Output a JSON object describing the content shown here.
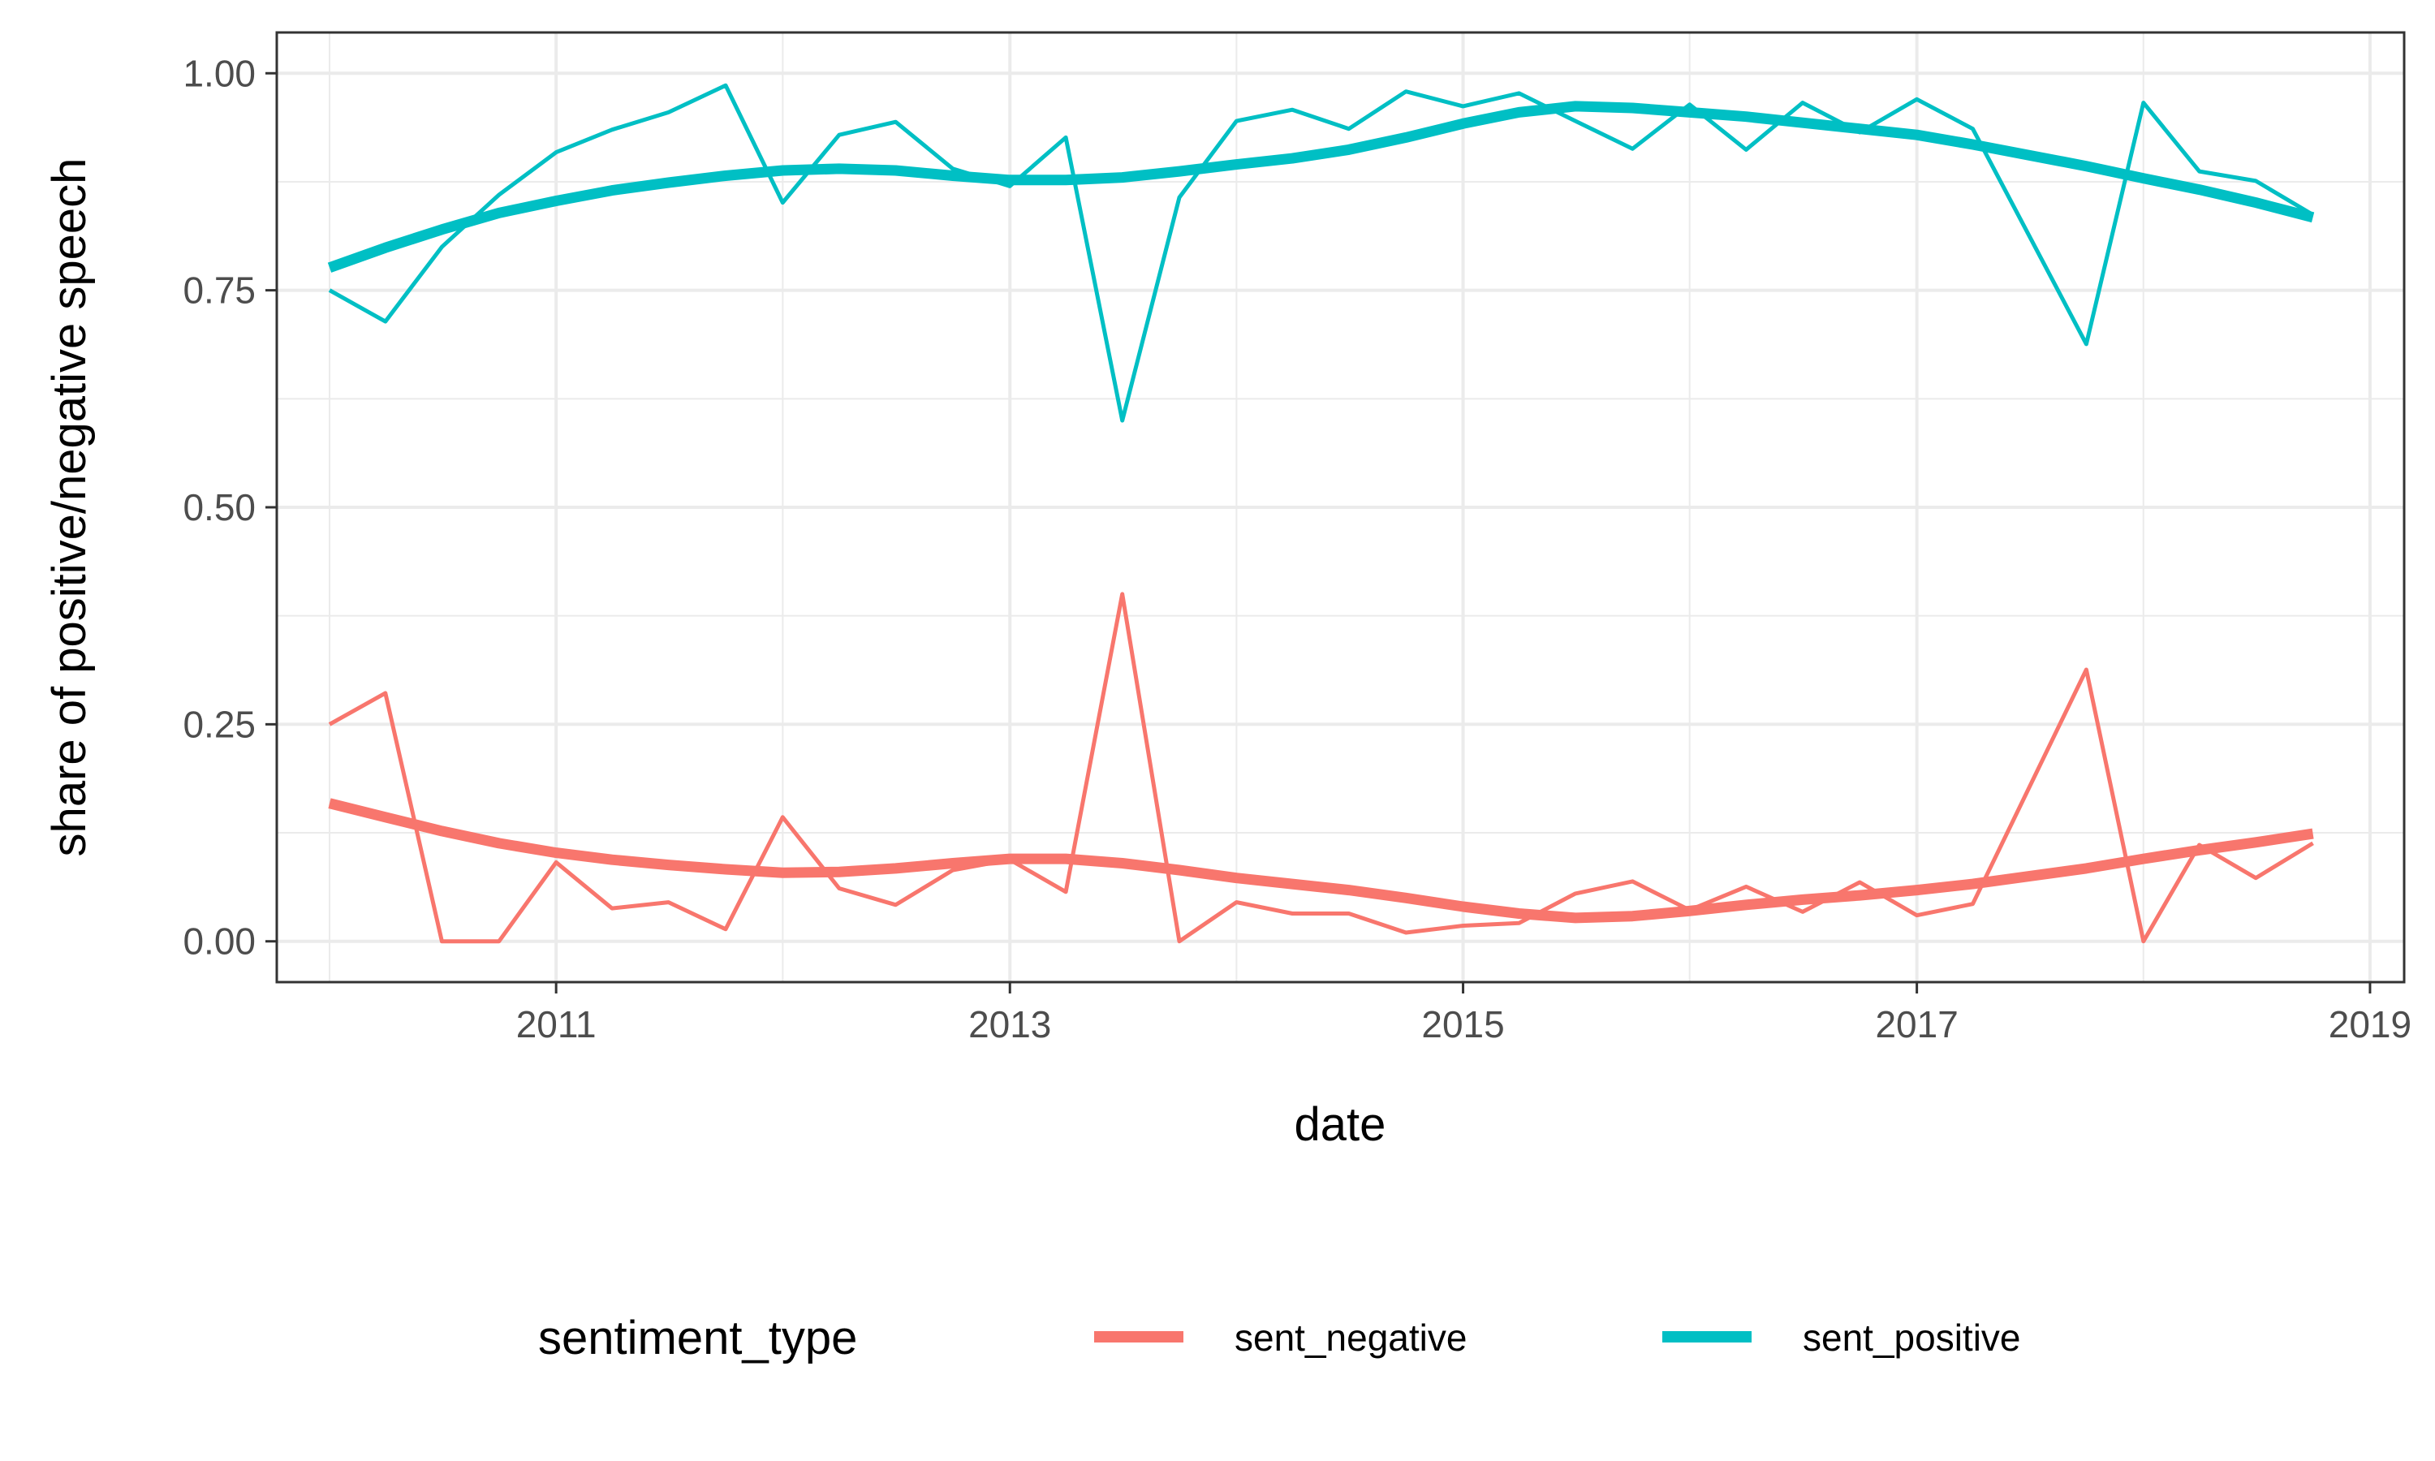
{
  "chart_data": {
    "type": "line",
    "xlabel": "date",
    "ylabel": "share of positive/negative speech",
    "xlim": [
      "2009-10-08",
      "2019-02-25"
    ],
    "ylim": [
      -0.047,
      1.047
    ],
    "x_ticks": [
      "2011",
      "2013",
      "2015",
      "2017",
      "2019"
    ],
    "y_ticks": [
      "0.00",
      "0.25",
      "0.50",
      "0.75",
      "1.00"
    ],
    "grid": true,
    "legend": {
      "title": "sentiment_type",
      "position": "bottom",
      "entries": [
        "sent_negative",
        "sent_positive"
      ]
    },
    "x": [
      "2010-01-01",
      "2010-04-01",
      "2010-07-01",
      "2010-10-01",
      "2011-01-01",
      "2011-04-01",
      "2011-07-01",
      "2011-10-01",
      "2012-01-01",
      "2012-04-01",
      "2012-07-01",
      "2012-10-01",
      "2013-01-01",
      "2013-04-01",
      "2013-07-01",
      "2013-10-01",
      "2014-01-01",
      "2014-04-01",
      "2014-07-01",
      "2014-10-01",
      "2015-01-01",
      "2015-04-01",
      "2015-07-01",
      "2015-10-01",
      "2016-01-01",
      "2016-04-01",
      "2016-07-01",
      "2016-10-01",
      "2017-01-01",
      "2017-04-01",
      "2017-10-01",
      "2018-01-01",
      "2018-04-01",
      "2018-07-01",
      "2018-10-01"
    ],
    "series": [
      {
        "name": "sent_negative",
        "color": "#F8766D",
        "values": [
          0.25,
          0.286,
          0.0,
          0.0,
          0.091,
          0.038,
          0.045,
          0.014,
          0.143,
          0.061,
          0.042,
          0.082,
          0.094,
          0.057,
          0.4,
          0.0,
          0.045,
          0.032,
          0.032,
          0.01,
          0.018,
          0.021,
          0.055,
          0.069,
          0.036,
          0.063,
          0.034,
          0.068,
          0.03,
          0.043,
          0.313,
          0.0,
          0.111,
          0.073,
          0.113
        ],
        "smooth": [
          0.159,
          0.143,
          0.127,
          0.113,
          0.102,
          0.094,
          0.088,
          0.083,
          0.079,
          0.08,
          0.084,
          0.09,
          0.095,
          0.095,
          0.09,
          0.082,
          0.073,
          0.066,
          0.059,
          0.05,
          0.04,
          0.032,
          0.027,
          0.029,
          0.035,
          0.042,
          0.048,
          0.053,
          0.059,
          0.066,
          0.084,
          0.095,
          0.105,
          0.114,
          0.124
        ]
      },
      {
        "name": "sent_positive",
        "color": "#00BFC4",
        "values": [
          0.75,
          0.714,
          0.8,
          0.86,
          0.909,
          0.935,
          0.955,
          0.986,
          0.851,
          0.929,
          0.944,
          0.89,
          0.87,
          0.926,
          0.6,
          0.857,
          0.945,
          0.958,
          0.936,
          0.979,
          0.962,
          0.977,
          0.945,
          0.913,
          0.964,
          0.912,
          0.966,
          0.932,
          0.97,
          0.936,
          0.688,
          0.966,
          0.887,
          0.876,
          0.837
        ],
        "smooth": [
          0.776,
          0.799,
          0.82,
          0.839,
          0.853,
          0.865,
          0.874,
          0.882,
          0.888,
          0.89,
          0.888,
          0.882,
          0.877,
          0.877,
          0.88,
          0.887,
          0.895,
          0.902,
          0.912,
          0.926,
          0.942,
          0.955,
          0.962,
          0.96,
          0.955,
          0.95,
          0.943,
          0.936,
          0.929,
          0.918,
          0.893,
          0.879,
          0.866,
          0.851,
          0.834
        ]
      }
    ]
  }
}
